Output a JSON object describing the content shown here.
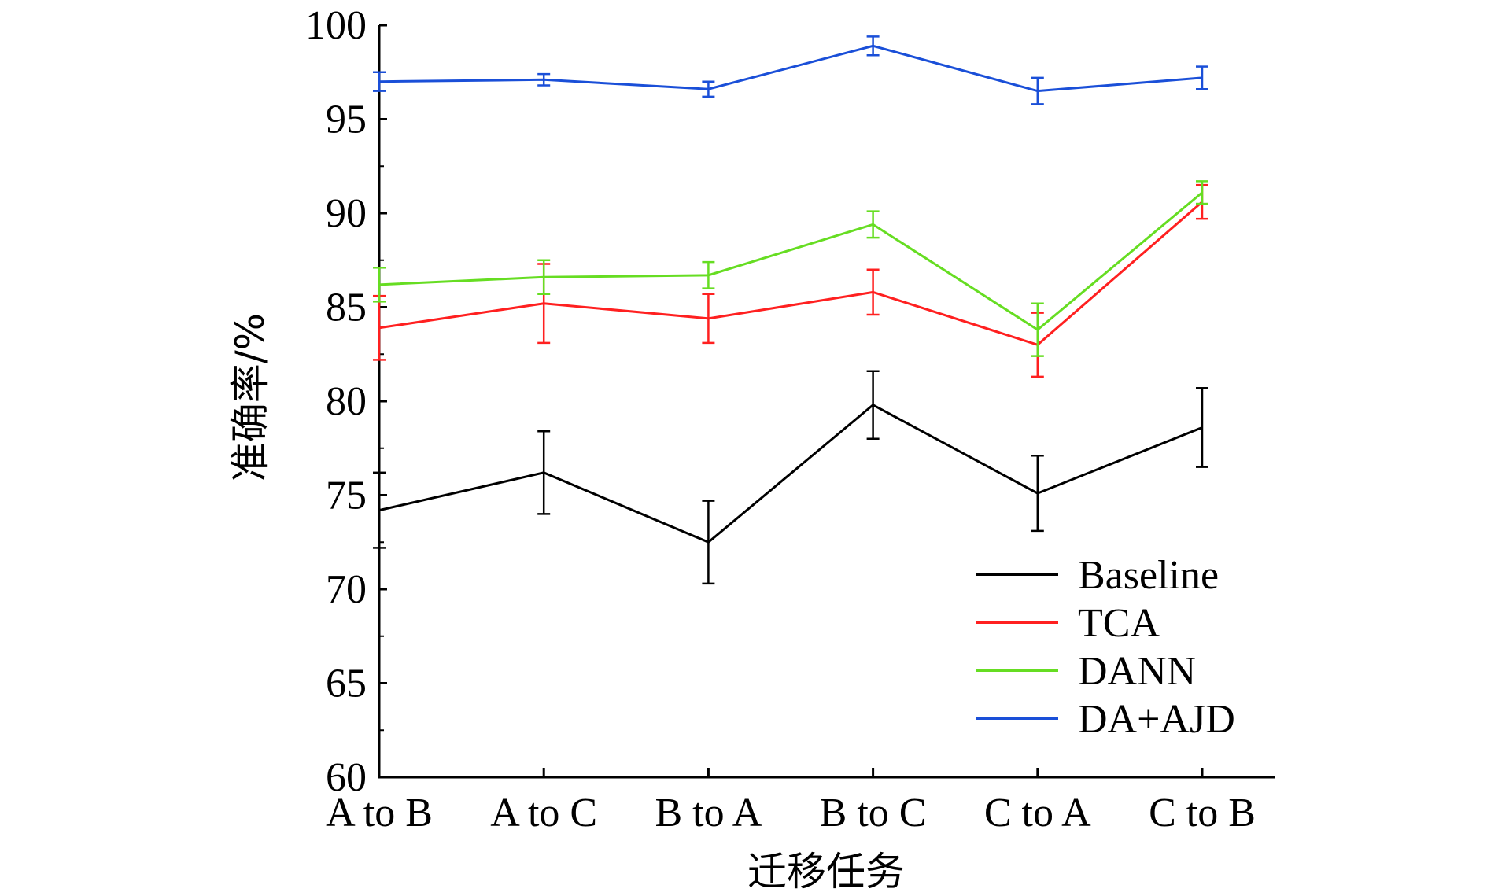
{
  "chart_data": {
    "type": "line",
    "xlabel": "迁移任务",
    "ylabel": "准确率/%",
    "ylim": [
      60,
      100
    ],
    "yticks": [
      60,
      65,
      70,
      75,
      80,
      85,
      90,
      95,
      100
    ],
    "categories": [
      "A to B",
      "A to C",
      "B to A",
      "B to C",
      "C to A",
      "C to B"
    ],
    "legend_position": "bottom-right",
    "grid": false,
    "error_bars": true,
    "series": [
      {
        "name": "Baseline",
        "color": "#000000",
        "values": [
          74.2,
          76.2,
          72.5,
          79.8,
          75.1,
          78.6
        ],
        "errors": [
          2.0,
          2.2,
          2.2,
          1.8,
          2.0,
          2.1
        ]
      },
      {
        "name": "TCA",
        "color": "#ff2020",
        "values": [
          83.9,
          85.2,
          84.4,
          85.8,
          83.0,
          90.6
        ],
        "errors": [
          1.7,
          2.1,
          1.3,
          1.2,
          1.7,
          0.9
        ]
      },
      {
        "name": "DANN",
        "color": "#66dd22",
        "values": [
          86.2,
          86.6,
          86.7,
          89.4,
          83.8,
          91.1
        ],
        "errors": [
          0.9,
          0.9,
          0.7,
          0.7,
          1.4,
          0.6
        ]
      },
      {
        "name": "DA+AJD",
        "color": "#1a4fd8",
        "values": [
          97.0,
          97.1,
          96.6,
          98.9,
          96.5,
          97.2
        ],
        "errors": [
          0.5,
          0.3,
          0.4,
          0.5,
          0.7,
          0.6
        ]
      }
    ]
  }
}
